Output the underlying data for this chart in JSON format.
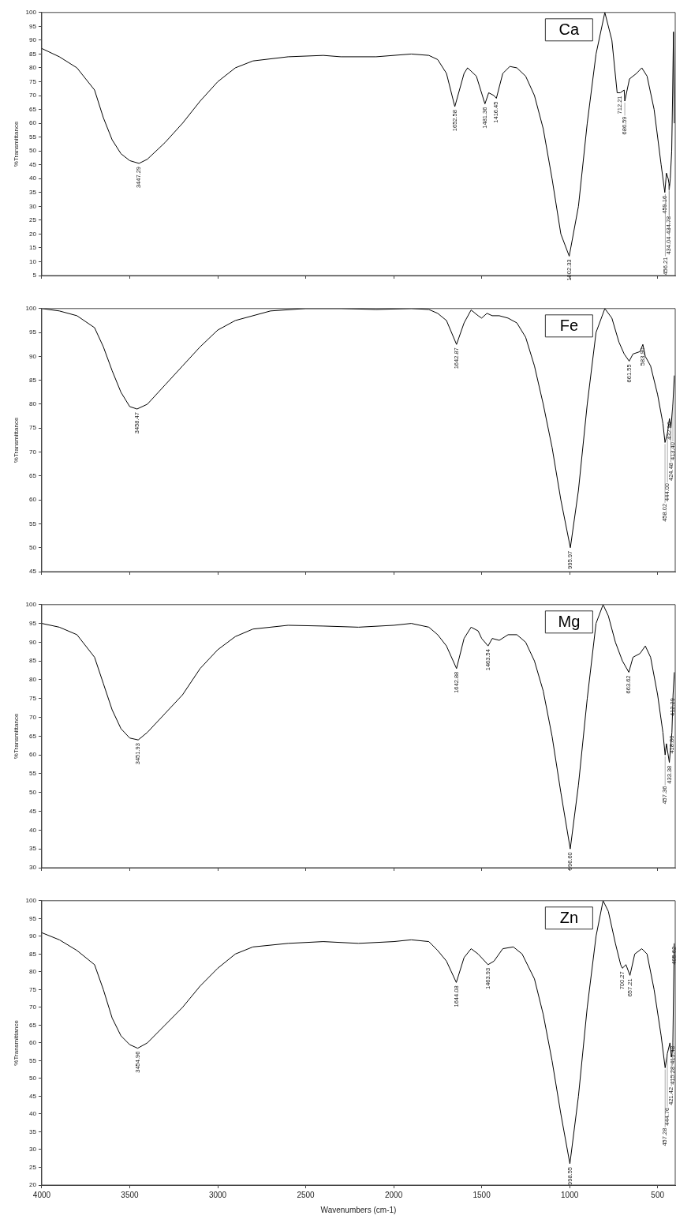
{
  "chart_data": [
    {
      "type": "line",
      "ylabel": "%Transmittance",
      "xlim": [
        4000,
        400
      ],
      "xticks": [
        4000,
        3500,
        3000,
        2500,
        2000,
        1500,
        1000,
        500
      ],
      "ylim": [
        5,
        100
      ],
      "yticks": [
        5,
        10,
        15,
        20,
        25,
        30,
        35,
        40,
        45,
        50,
        55,
        60,
        65,
        70,
        75,
        80,
        85,
        90,
        95,
        100
      ],
      "tick_labels": "y",
      "marker": "none",
      "legend": "top right",
      "series": [
        {
          "name": "Ca",
          "color": "#000000",
          "x": [
            4000,
            3900,
            3800,
            3700,
            3650,
            3600,
            3550,
            3500,
            3447.29,
            3400,
            3300,
            3200,
            3100,
            3000,
            2900,
            2800,
            2600,
            2400,
            2300,
            2100,
            1900,
            1800,
            1750,
            1700,
            1652.58,
            1600,
            1580,
            1530,
            1481.36,
            1460,
            1430,
            1416.45,
            1380,
            1340,
            1300,
            1250,
            1200,
            1150,
            1100,
            1050,
            1002.33,
            950,
            900,
            850,
            800,
            760,
            730,
            712.21,
            690,
            686.59,
            660,
            620,
            590,
            560,
            520,
            480,
            459.16,
            450,
            440,
            434.78,
            434.04,
            428,
            420,
            415,
            410,
            405
          ],
          "values": [
            87,
            84,
            80,
            72,
            62,
            54,
            49,
            46.5,
            45.5,
            47,
            53,
            60,
            68,
            75,
            80,
            82.5,
            84,
            84.5,
            84,
            84,
            85,
            84.5,
            83,
            78,
            66,
            78,
            80,
            77,
            67,
            71,
            70,
            69,
            78,
            80.5,
            80,
            77,
            70,
            58,
            40,
            20,
            12,
            30,
            60,
            85,
            100,
            90,
            71,
            71,
            72,
            68,
            76,
            78,
            80,
            77,
            65,
            45,
            35,
            42,
            40,
            38,
            36,
            40,
            50,
            70,
            93,
            60
          ]
        }
      ],
      "annotations": [
        {
          "text": "3447.29",
          "x": 3447.29,
          "y": 45.5
        },
        {
          "text": "1652.58",
          "x": 1652.58,
          "y": 66
        },
        {
          "text": "1481.36",
          "x": 1481.36,
          "y": 67
        },
        {
          "text": "1416.45",
          "x": 1416.45,
          "y": 69
        },
        {
          "text": "1002.33",
          "x": 1002.33,
          "y": 12
        },
        {
          "text": "712.21",
          "x": 712.21,
          "y": 71
        },
        {
          "text": "686.59",
          "x": 686.59,
          "y": 68
        },
        {
          "text": "459.16",
          "x": 459.16,
          "y": 35
        },
        {
          "text": "434.78",
          "x": 434.78,
          "y": 38
        },
        {
          "text": "434.04",
          "x": 434.04,
          "y": 36
        },
        {
          "text": "456.21",
          "x": 456.21,
          "y": 35
        }
      ]
    },
    {
      "type": "line",
      "ylabel": "%Transmittance",
      "xlim": [
        4000,
        400
      ],
      "xticks": [
        4000,
        3500,
        3000,
        2500,
        2000,
        1500,
        1000,
        500
      ],
      "ylim": [
        45,
        100
      ],
      "yticks": [
        45,
        50,
        55,
        60,
        65,
        70,
        75,
        80,
        85,
        90,
        95,
        100
      ],
      "tick_labels": "y",
      "marker": "none",
      "legend": "top right",
      "series": [
        {
          "name": "Fe",
          "color": "#000000",
          "x": [
            4000,
            3900,
            3800,
            3700,
            3650,
            3600,
            3550,
            3500,
            3458.47,
            3400,
            3300,
            3200,
            3100,
            3000,
            2900,
            2700,
            2500,
            2300,
            2100,
            1900,
            1800,
            1750,
            1700,
            1642.87,
            1600,
            1560,
            1520,
            1500,
            1470,
            1440,
            1400,
            1350,
            1300,
            1250,
            1200,
            1150,
            1100,
            1050,
            995.97,
            950,
            900,
            850,
            800,
            760,
            720,
            690,
            661.55,
            640,
            600,
            583.9,
            570,
            540,
            500,
            470,
            458.02,
            444,
            432.9,
            424.48,
            413.4,
            405
          ],
          "values": [
            100,
            99.5,
            98.5,
            96,
            92,
            87,
            82.5,
            79.5,
            79,
            80,
            84,
            88,
            92,
            95.5,
            97.5,
            99.5,
            100,
            100,
            99.8,
            100,
            99.8,
            99,
            97.5,
            92.5,
            97,
            99.7,
            98.5,
            98,
            99,
            98.5,
            98.5,
            98,
            97,
            94,
            88,
            80,
            71,
            60,
            50,
            62,
            80,
            95,
            100,
            98,
            93,
            90.5,
            89,
            90.5,
            91,
            92.5,
            90,
            88,
            82,
            76,
            72,
            74,
            77,
            75,
            80,
            86
          ]
        }
      ],
      "annotations": [
        {
          "text": "3458.47",
          "x": 3458.47,
          "y": 79
        },
        {
          "text": "1642.87",
          "x": 1642.87,
          "y": 92.5
        },
        {
          "text": "995.97",
          "x": 995.97,
          "y": 50
        },
        {
          "text": "661.55",
          "x": 661.55,
          "y": 89
        },
        {
          "text": "583.90",
          "x": 583.9,
          "y": 92.5
        },
        {
          "text": "432.90",
          "x": 432.9,
          "y": 77
        },
        {
          "text": "413.40",
          "x": 413.4,
          "y": 80
        },
        {
          "text": "424.48",
          "x": 424.48,
          "y": 75
        },
        {
          "text": "444.00",
          "x": 444,
          "y": 74
        },
        {
          "text": "458.02",
          "x": 458.02,
          "y": 72
        }
      ]
    },
    {
      "type": "line",
      "ylabel": "%Transmittance",
      "xlim": [
        4000,
        400
      ],
      "xticks": [
        4000,
        3500,
        3000,
        2500,
        2000,
        1500,
        1000,
        500
      ],
      "ylim": [
        30,
        100
      ],
      "yticks": [
        30,
        35,
        40,
        45,
        50,
        55,
        60,
        65,
        70,
        75,
        80,
        85,
        90,
        95,
        100
      ],
      "tick_labels": "y",
      "marker": "none",
      "legend": "top right",
      "series": [
        {
          "name": "Mg",
          "color": "#000000",
          "x": [
            4000,
            3900,
            3800,
            3700,
            3650,
            3600,
            3550,
            3500,
            3451.93,
            3400,
            3300,
            3200,
            3100,
            3000,
            2900,
            2800,
            2600,
            2400,
            2200,
            2000,
            1900,
            1800,
            1750,
            1700,
            1642.88,
            1600,
            1560,
            1520,
            1500,
            1463.54,
            1440,
            1400,
            1350,
            1300,
            1250,
            1200,
            1150,
            1100,
            1050,
            996.6,
            950,
            900,
            850,
            810,
            780,
            740,
            700,
            663.62,
            640,
            600,
            570,
            540,
            500,
            470,
            457.36,
            450,
            433.38,
            418.8,
            412.29,
            405
          ],
          "values": [
            95,
            94,
            92,
            86,
            79,
            72,
            67,
            64.5,
            64,
            66,
            71,
            76,
            83,
            88,
            91.5,
            93.5,
            94.5,
            94.3,
            94,
            94.5,
            95,
            94,
            92,
            89,
            83,
            91,
            94,
            93,
            91,
            89,
            91,
            90.5,
            92,
            92,
            90,
            85,
            77,
            65,
            50,
            35,
            52,
            75,
            95,
            100,
            97,
            90,
            85,
            82,
            86,
            87,
            89,
            86,
            76,
            66,
            60,
            63,
            58,
            66,
            76,
            82
          ]
        }
      ],
      "annotations": [
        {
          "text": "3451.93",
          "x": 3451.93,
          "y": 64
        },
        {
          "text": "1642.88",
          "x": 1642.88,
          "y": 83
        },
        {
          "text": "1463.54",
          "x": 1463.54,
          "y": 89
        },
        {
          "text": "996.60",
          "x": 996.6,
          "y": 35
        },
        {
          "text": "663.62",
          "x": 663.62,
          "y": 82
        },
        {
          "text": "412.29",
          "x": 412.29,
          "y": 76
        },
        {
          "text": "418.80",
          "x": 418.8,
          "y": 66
        },
        {
          "text": "433.38",
          "x": 433.38,
          "y": 58
        },
        {
          "text": "457.36",
          "x": 457.36,
          "y": 60
        }
      ]
    },
    {
      "type": "line",
      "ylabel": "%Transmittance",
      "xlabel": "Wavenumbers (cm-1)",
      "xlim": [
        4000,
        400
      ],
      "xticks": [
        4000,
        3500,
        3000,
        2500,
        2000,
        1500,
        1000,
        500
      ],
      "ylim": [
        20,
        100
      ],
      "yticks": [
        20,
        25,
        30,
        35,
        40,
        45,
        50,
        55,
        60,
        65,
        70,
        75,
        80,
        85,
        90,
        95,
        100
      ],
      "marker": "none",
      "legend": "top right",
      "series": [
        {
          "name": "Zn",
          "color": "#000000",
          "x": [
            4000,
            3900,
            3800,
            3700,
            3650,
            3600,
            3550,
            3500,
            3454.96,
            3400,
            3300,
            3200,
            3100,
            3000,
            2900,
            2800,
            2600,
            2400,
            2200,
            2000,
            1900,
            1800,
            1750,
            1700,
            1644.08,
            1600,
            1560,
            1520,
            1463.93,
            1430,
            1380,
            1320,
            1270,
            1200,
            1150,
            1100,
            1050,
            998.55,
            950,
            900,
            850,
            810,
            780,
            740,
            710,
            700.27,
            680,
            657.21,
            630,
            590,
            560,
            520,
            480,
            457.28,
            444.76,
            430,
            421.42,
            415.28,
            413.48,
            405.62
          ],
          "values": [
            91,
            89,
            86,
            82,
            75,
            67,
            62,
            59.5,
            58.5,
            60,
            65,
            70,
            76,
            81,
            85,
            87,
            88,
            88.5,
            88,
            88.5,
            89,
            88.5,
            86,
            83,
            77,
            84,
            86.5,
            85,
            82,
            83,
            86.5,
            87,
            85,
            78,
            68,
            55,
            40,
            26,
            45,
            70,
            90,
            100,
            97,
            88,
            82,
            81,
            82,
            79,
            85,
            86.5,
            85,
            75,
            62,
            53,
            57,
            60,
            56,
            58,
            60,
            88
          ]
        }
      ],
      "annotations": [
        {
          "text": "3454.96",
          "x": 3454.96,
          "y": 58.5
        },
        {
          "text": "1644.08",
          "x": 1644.08,
          "y": 77
        },
        {
          "text": "1463.93",
          "x": 1463.93,
          "y": 82
        },
        {
          "text": "998.55",
          "x": 998.55,
          "y": 26
        },
        {
          "text": "700.27",
          "x": 700.27,
          "y": 81
        },
        {
          "text": "657.21",
          "x": 657.21,
          "y": 79
        },
        {
          "text": "405.62",
          "x": 405.62,
          "y": 88
        },
        {
          "text": "413.48",
          "x": 413.48,
          "y": 60
        },
        {
          "text": "415.28",
          "x": 415.28,
          "y": 58
        },
        {
          "text": "421.42",
          "x": 421.42,
          "y": 56
        },
        {
          "text": "444.76",
          "x": 444.76,
          "y": 57
        },
        {
          "text": "457.28",
          "x": 457.28,
          "y": 53
        }
      ]
    }
  ]
}
